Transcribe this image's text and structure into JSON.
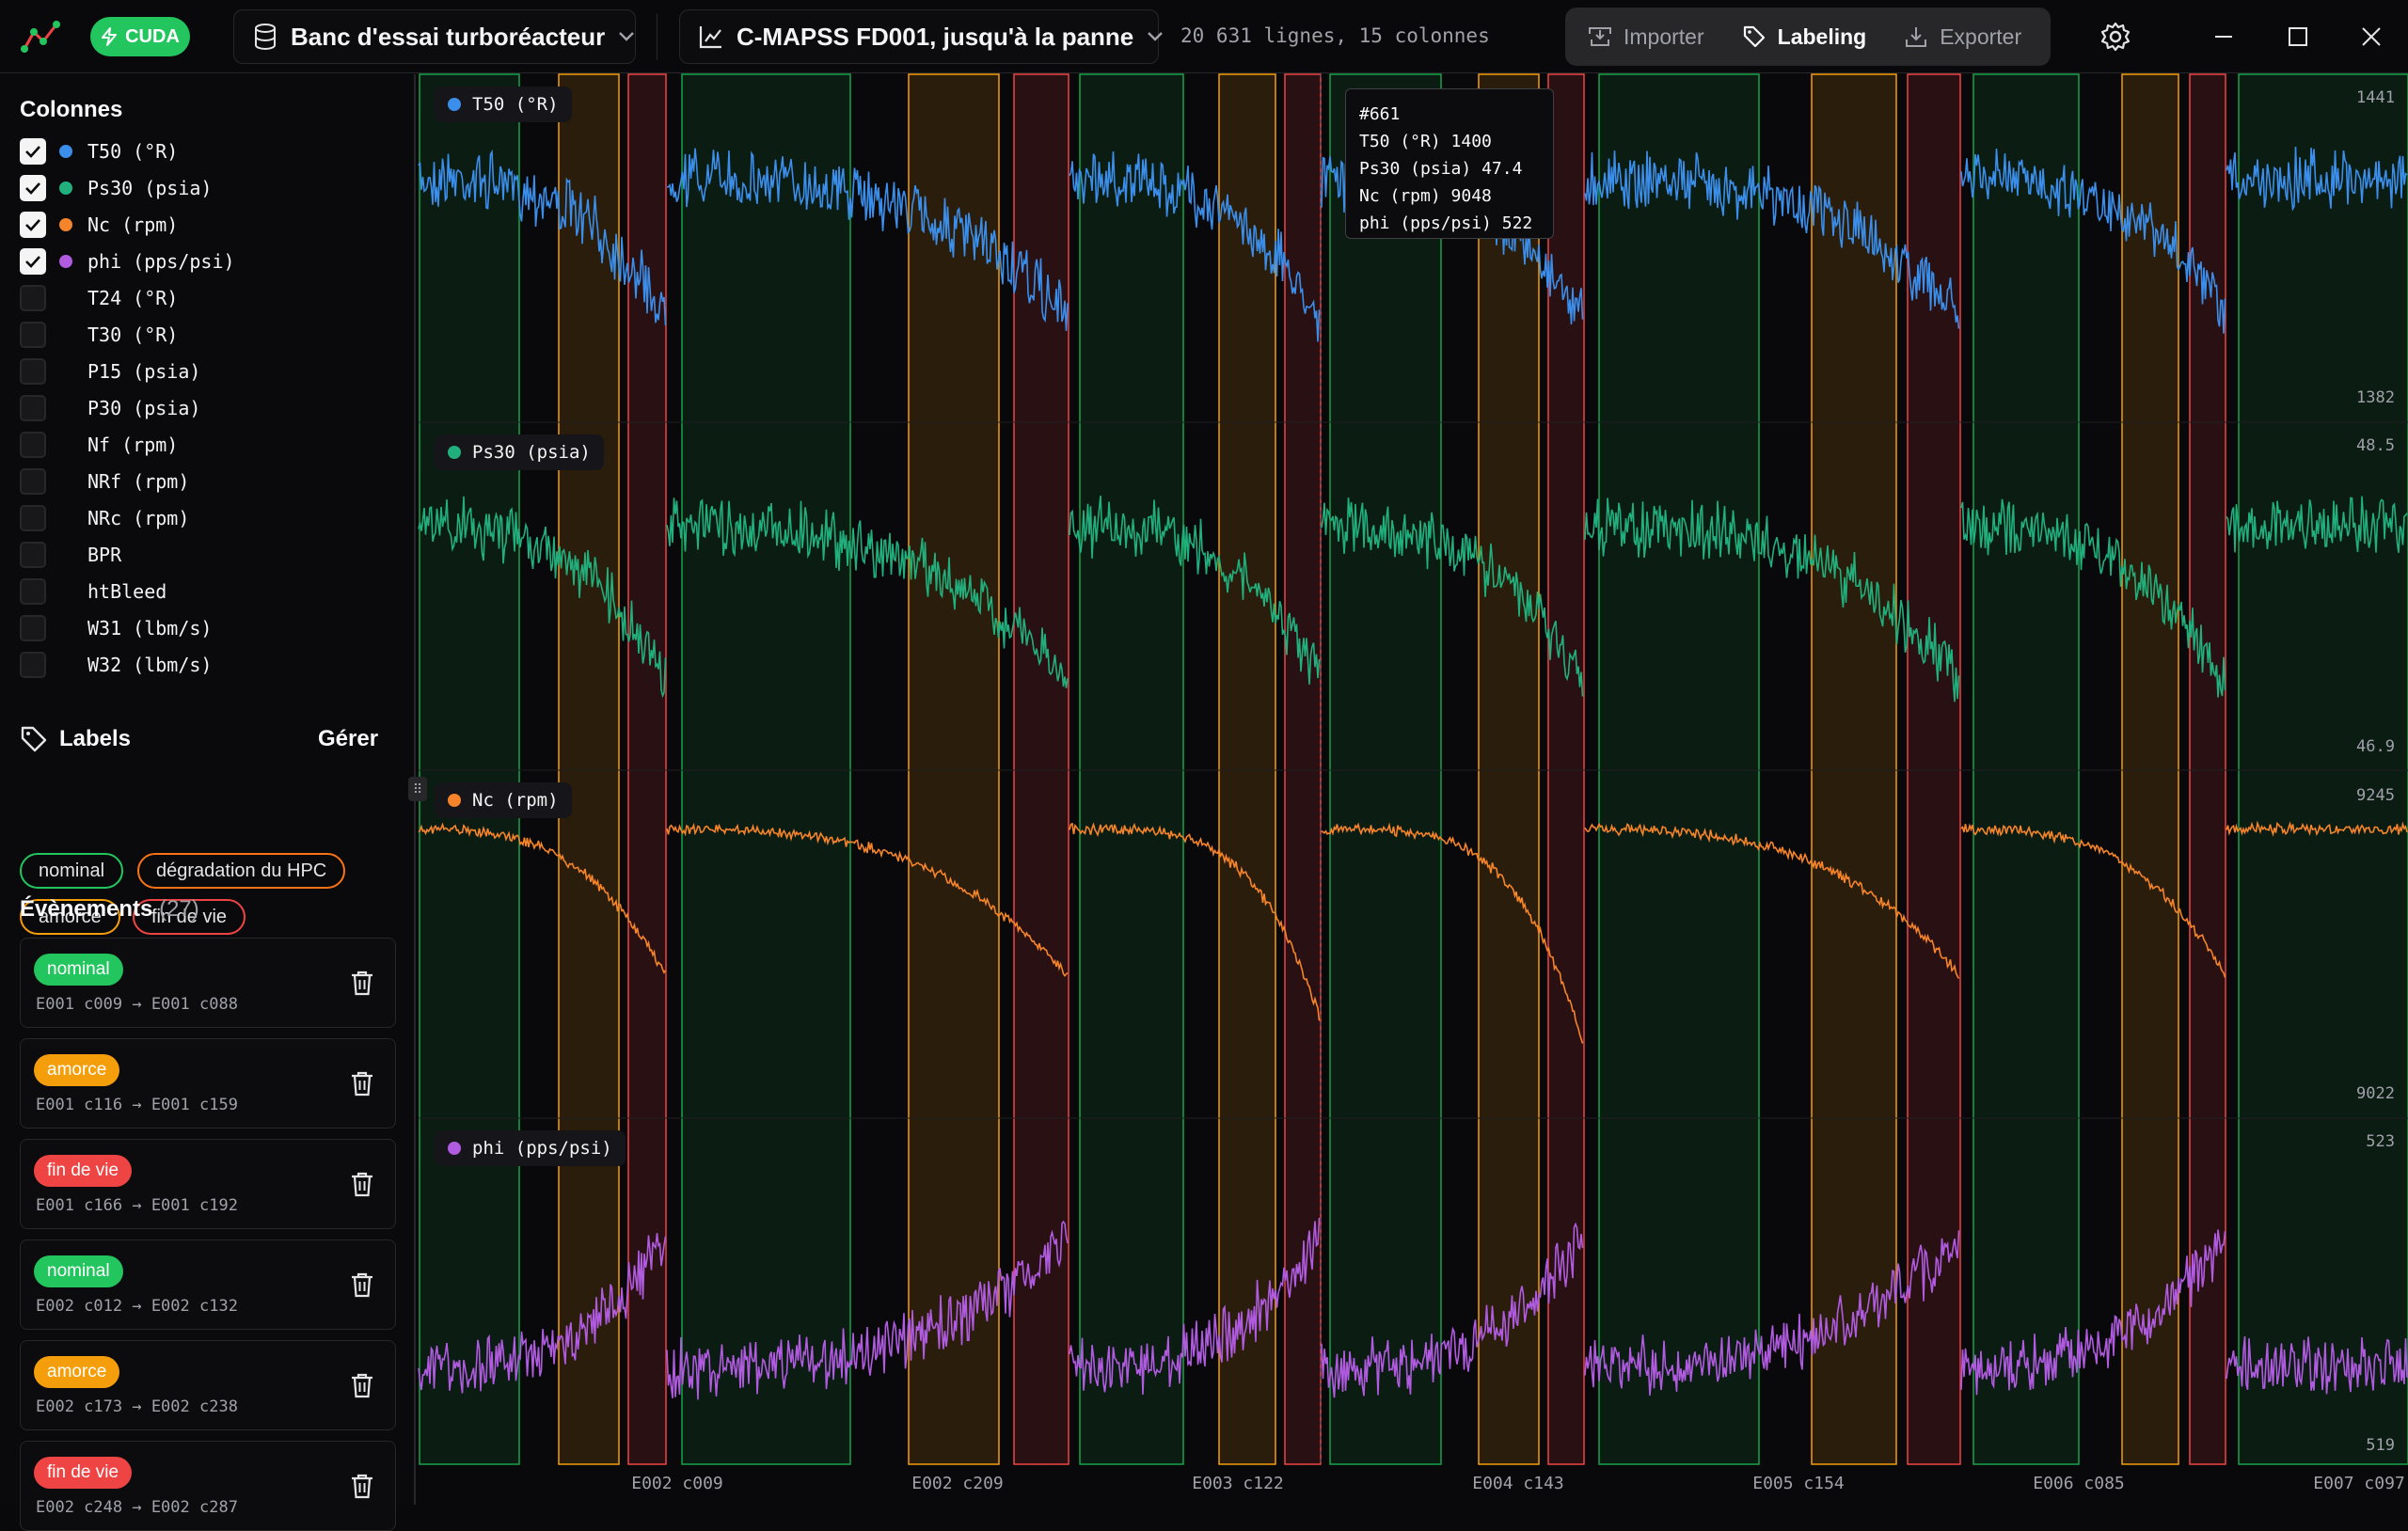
{
  "app": {
    "device_badge": "CUDA",
    "project": "Banc d'essai turboréacteur",
    "dataset": "C-MAPSS FD001, jusqu'à la panne",
    "dataset_info": "20 631 lignes, 15 colonnes",
    "toolbar": {
      "import": "Importer",
      "labeling": "Labeling",
      "export": "Exporter"
    }
  },
  "colors": {
    "T50": "#3b8eea",
    "Ps30": "#21b07d",
    "Nc": "#f5842a",
    "phi": "#b05be0",
    "nominal": "#22c55e",
    "amorce": "#f59e0b",
    "fin_de_vie": "#ef4444",
    "hpc": "#f97316"
  },
  "sidebar": {
    "columns_title": "Colonnes",
    "columns": [
      {
        "label": "T50 (°R)",
        "checked": true,
        "color": "#3b8eea"
      },
      {
        "label": "Ps30 (psia)",
        "checked": true,
        "color": "#21b07d"
      },
      {
        "label": "Nc (rpm)",
        "checked": true,
        "color": "#f5842a"
      },
      {
        "label": "phi (pps/psi)",
        "checked": true,
        "color": "#b05be0"
      },
      {
        "label": "T24 (°R)",
        "checked": false
      },
      {
        "label": "T30 (°R)",
        "checked": false
      },
      {
        "label": "P15 (psia)",
        "checked": false
      },
      {
        "label": "P30 (psia)",
        "checked": false
      },
      {
        "label": "Nf (rpm)",
        "checked": false
      },
      {
        "label": "NRf (rpm)",
        "checked": false
      },
      {
        "label": "NRc (rpm)",
        "checked": false
      },
      {
        "label": "BPR",
        "checked": false
      },
      {
        "label": "htBleed",
        "checked": false
      },
      {
        "label": "W31 (lbm/s)",
        "checked": false
      },
      {
        "label": "W32 (lbm/s)",
        "checked": false
      }
    ],
    "labels_title": "Labels",
    "labels_manage": "Gérer",
    "labels": [
      {
        "name": "nominal",
        "color": "#22c55e"
      },
      {
        "name": "dégradation du HPC",
        "color": "#f97316"
      },
      {
        "name": "amorce",
        "color": "#f59e0b"
      },
      {
        "name": "fin de vie",
        "color": "#ef4444"
      }
    ],
    "events_title": "Évènements",
    "events_count": "(27)",
    "events": [
      {
        "label": "nominal",
        "range": "E001 c009 → E001 c088",
        "color": "#22c55e"
      },
      {
        "label": "amorce",
        "range": "E001 c116 → E001 c159",
        "color": "#f59e0b"
      },
      {
        "label": "fin de vie",
        "range": "E001 c166 → E001 c192",
        "color": "#ef4444"
      },
      {
        "label": "nominal",
        "range": "E002 c012 → E002 c132",
        "color": "#22c55e"
      },
      {
        "label": "amorce",
        "range": "E002 c173 → E002 c238",
        "color": "#f59e0b"
      },
      {
        "label": "fin de vie",
        "range": "E002 c248 → E002 c287",
        "color": "#ef4444"
      }
    ]
  },
  "chart_data": {
    "type": "line",
    "series": [
      {
        "name": "T50 (°R)",
        "min": "1382",
        "max": "1441",
        "color": "#3b8eea"
      },
      {
        "name": "Ps30 (psia)",
        "min": "46.9",
        "max": "48.5",
        "color": "#21b07d"
      },
      {
        "name": "Nc (rpm)",
        "min": "9022",
        "max": "9245",
        "color": "#f5842a"
      },
      {
        "name": "phi (pps/psi)",
        "min": "519",
        "max": "523",
        "color": "#b05be0"
      }
    ],
    "x_ticks": [
      "E002 c009",
      "E002 c209",
      "E003 c122",
      "E004 c143",
      "E005 c154",
      "E006 c085",
      "E007 c097"
    ],
    "tooltip": {
      "index": "#661",
      "rows": [
        {
          "name": "T50 (°R)",
          "value": "1400"
        },
        {
          "name": "Ps30 (psia)",
          "value": "47.4"
        },
        {
          "name": "Nc (rpm)",
          "value": "9048"
        },
        {
          "name": "phi (pps/psi)",
          "value": "522"
        }
      ]
    }
  }
}
